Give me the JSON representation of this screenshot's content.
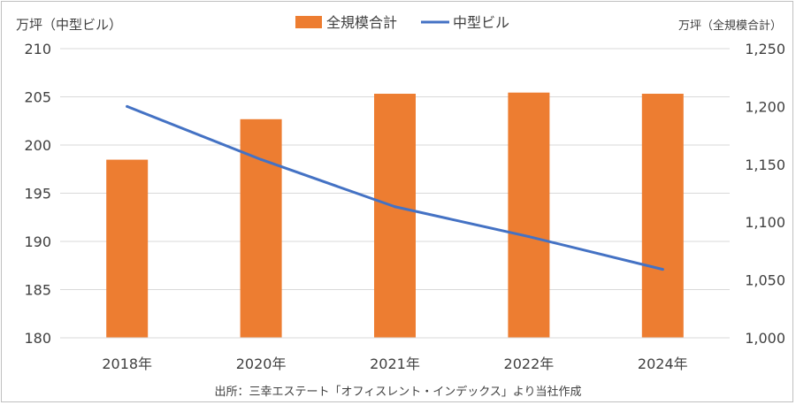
{
  "chart_data": {
    "type": "bar+line",
    "categories": [
      "2018年",
      "2020年",
      "2021年",
      "2022年",
      "2024年"
    ],
    "series": [
      {
        "name": "全規模合計",
        "type": "bar",
        "axis": "right",
        "color": "#ED7D31",
        "values": [
          1154,
          1189,
          1211,
          1212,
          1211
        ]
      },
      {
        "name": "中型ビル",
        "type": "line",
        "axis": "left",
        "color": "#4472C4",
        "values": [
          204.0,
          198.5,
          193.6,
          190.5,
          187.1
        ]
      }
    ],
    "y_left": {
      "label": "万坪（中型ビル）",
      "ylim": [
        180,
        210
      ],
      "ticks": [
        "180",
        "185",
        "190",
        "195",
        "200",
        "205",
        "210"
      ]
    },
    "y_right": {
      "label": "万坪（全規模合計）",
      "ylim": [
        1000,
        1250
      ],
      "ticks": [
        "1,000",
        "1,050",
        "1,100",
        "1,150",
        "1,200",
        "1,250"
      ]
    },
    "grid": true,
    "legend_position": "top-center",
    "source": "出所：三幸エステート「オフィスレント・インデックス」より当社作成"
  }
}
